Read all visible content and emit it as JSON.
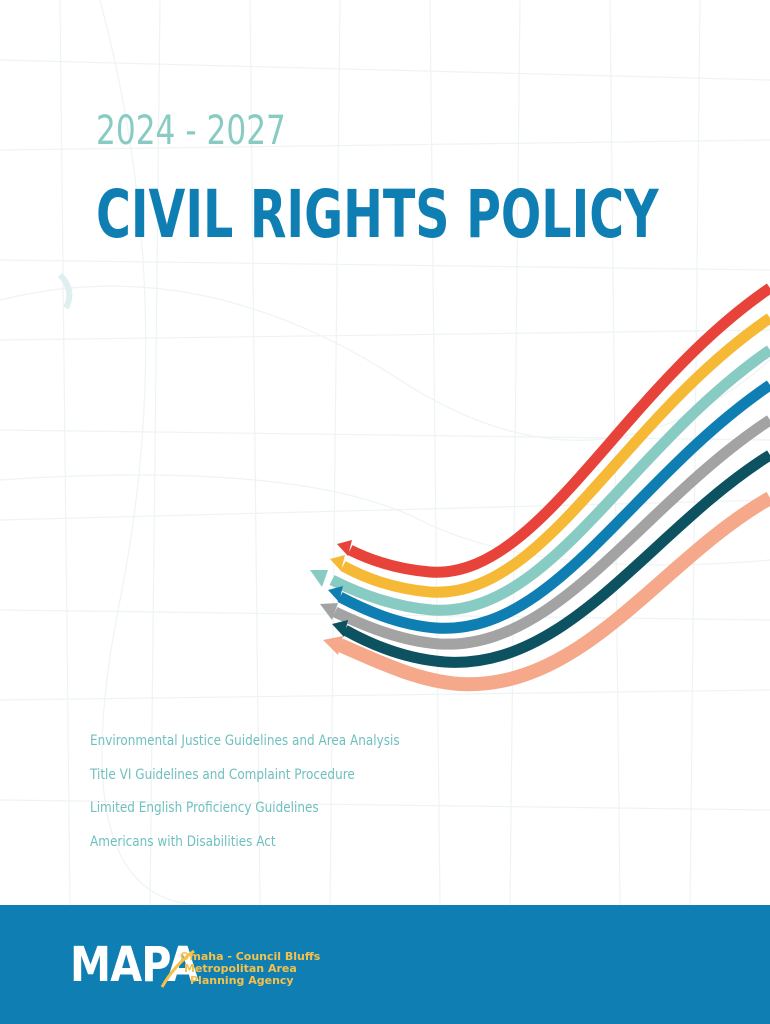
{
  "cover": {
    "years": "2024 - 2027",
    "title": "CIVIL RIGHTS POLICY",
    "topics": [
      "Environmental Justice Guidelines and Area Analysis",
      "Title VI Guidelines and Complaint Procedure",
      "Limited English Proficiency Guidelines",
      "Americans with Disabilities Act"
    ],
    "swoosh_colors": [
      "#e8433a",
      "#f5b935",
      "#88cbc3",
      "#0f7fb3",
      "#a3a3a3",
      "#0c5260",
      "#f5a88a"
    ]
  },
  "footer": {
    "background": "#0f7fb3",
    "logo_text": "MAPA",
    "tagline": [
      "Omaha - Council Bluffs",
      "Metropolitan Area",
      "Planning Agency"
    ]
  }
}
